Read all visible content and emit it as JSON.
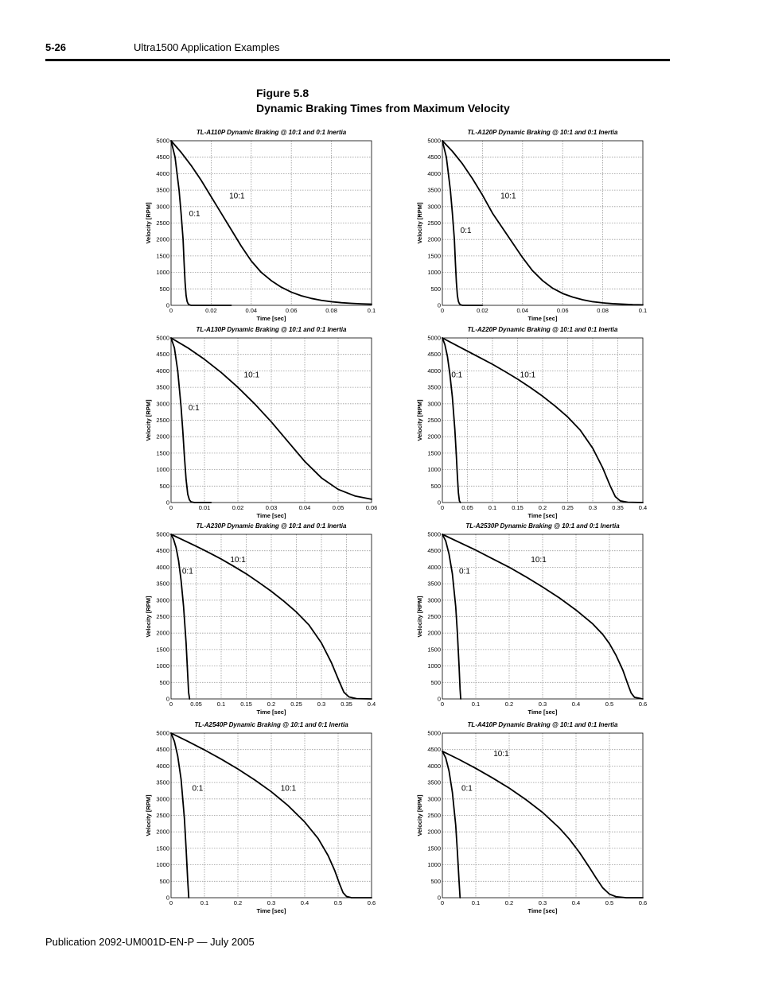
{
  "header": {
    "page_number": "5-26",
    "section": "Ultra1500 Application Examples"
  },
  "figure": {
    "number": "Figure 5.8",
    "title": "Dynamic Braking Times from Maximum Velocity"
  },
  "footer": {
    "publication": "Publication 2092-UM001D-EN-P — July 2005"
  },
  "colors": {
    "line": "#000000",
    "grid": "#9a9a9a",
    "frame": "#000000"
  },
  "chart_data": [
    {
      "type": "line",
      "title": "TL-A110P Dynamic Braking @ 10:1 and 0:1 Inertia",
      "xlabel": "Time [sec]",
      "ylabel": "Velocity [RPM]",
      "xlim": [
        0,
        0.1
      ],
      "ylim": [
        0,
        5000
      ],
      "grid": true,
      "xticks": [
        "0",
        "0.02",
        "0.04",
        "0.06",
        "0.08",
        "0.1"
      ],
      "yticks": [
        "0",
        "500",
        "1000",
        "1500",
        "2000",
        "2500",
        "3000",
        "3500",
        "4000",
        "4500",
        "5000"
      ],
      "series": [
        {
          "name": "0:1",
          "label_at": [
            0.009,
            2700
          ],
          "x": [
            0,
            0.002,
            0.004,
            0.005,
            0.006,
            0.0065,
            0.007,
            0.0075,
            0.008,
            0.0085,
            0.009,
            0.01,
            0.012,
            0.03
          ],
          "y": [
            5000,
            4500,
            3500,
            2800,
            2000,
            1300,
            700,
            300,
            120,
            50,
            20,
            0,
            0,
            0
          ]
        },
        {
          "name": "10:1",
          "label_at": [
            0.029,
            3250
          ],
          "x": [
            0,
            0.005,
            0.01,
            0.015,
            0.02,
            0.025,
            0.03,
            0.035,
            0.04,
            0.045,
            0.05,
            0.055,
            0.06,
            0.065,
            0.07,
            0.075,
            0.08,
            0.085,
            0.09,
            0.095,
            0.1
          ],
          "y": [
            5000,
            4650,
            4250,
            3800,
            3300,
            2800,
            2300,
            1800,
            1350,
            1000,
            750,
            550,
            400,
            290,
            210,
            150,
            110,
            80,
            60,
            45,
            35
          ]
        }
      ]
    },
    {
      "type": "line",
      "title": "TL-A120P Dynamic Braking @ 10:1 and 0:1 Inertia",
      "xlabel": "Time [sec]",
      "ylabel": "Velocity [RPM]",
      "xlim": [
        0,
        0.1
      ],
      "ylim": [
        0,
        5000
      ],
      "grid": true,
      "xticks": [
        "0",
        "0.02",
        "0.04",
        "0.06",
        "0.08",
        "0.1"
      ],
      "yticks": [
        "0",
        "500",
        "1000",
        "1500",
        "2000",
        "2500",
        "3000",
        "3500",
        "4000",
        "4500",
        "5000"
      ],
      "series": [
        {
          "name": "0:1",
          "label_at": [
            0.009,
            2200
          ],
          "x": [
            0,
            0.002,
            0.004,
            0.005,
            0.006,
            0.0065,
            0.007,
            0.0075,
            0.008,
            0.0085,
            0.009,
            0.01,
            0.012,
            0.02
          ],
          "y": [
            5000,
            4500,
            3500,
            2800,
            2000,
            1300,
            700,
            300,
            120,
            50,
            20,
            0,
            0,
            0
          ]
        },
        {
          "name": "10:1",
          "label_at": [
            0.029,
            3250
          ],
          "x": [
            0,
            0.005,
            0.01,
            0.015,
            0.02,
            0.025,
            0.03,
            0.035,
            0.04,
            0.045,
            0.05,
            0.055,
            0.06,
            0.065,
            0.07,
            0.075,
            0.08,
            0.085,
            0.09,
            0.095,
            0.1
          ],
          "y": [
            5000,
            4680,
            4300,
            3850,
            3350,
            2800,
            2350,
            1900,
            1450,
            1050,
            750,
            520,
            360,
            250,
            170,
            110,
            75,
            50,
            35,
            20,
            15
          ]
        }
      ]
    },
    {
      "type": "line",
      "title": "TL-A130P Dynamic Braking @ 10:1 and 0:1 Inertia",
      "xlabel": "Time [sec]",
      "ylabel": "Velocity [RPM]",
      "xlim": [
        0,
        0.06
      ],
      "ylim": [
        0,
        5000
      ],
      "grid": true,
      "xticks": [
        "0",
        "0.01",
        "0.02",
        "0.03",
        "0.04",
        "0.05",
        "0.06"
      ],
      "yticks": [
        "0",
        "500",
        "1000",
        "1500",
        "2000",
        "2500",
        "3000",
        "3500",
        "4000",
        "4500",
        "5000"
      ],
      "series": [
        {
          "name": "0:1",
          "label_at": [
            0.0052,
            2800
          ],
          "x": [
            0,
            0.001,
            0.002,
            0.003,
            0.0035,
            0.004,
            0.0045,
            0.005,
            0.0055,
            0.006,
            0.007,
            0.012
          ],
          "y": [
            5000,
            4700,
            4000,
            2900,
            2200,
            1400,
            700,
            250,
            80,
            20,
            0,
            0
          ]
        },
        {
          "name": "10:1",
          "label_at": [
            0.0218,
            3800
          ],
          "x": [
            0,
            0.005,
            0.01,
            0.015,
            0.02,
            0.025,
            0.03,
            0.035,
            0.04,
            0.045,
            0.05,
            0.055,
            0.06
          ],
          "y": [
            5000,
            4700,
            4350,
            3950,
            3500,
            3000,
            2450,
            1850,
            1250,
            750,
            400,
            200,
            100
          ]
        }
      ]
    },
    {
      "type": "line",
      "title": "TL-A220P Dynamic Braking @ 10:1 and 0:1 Inertia",
      "xlabel": "Time [sec]",
      "ylabel": "Velocity [RPM]",
      "xlim": [
        0,
        0.4
      ],
      "ylim": [
        0,
        5000
      ],
      "grid": true,
      "xticks": [
        "0",
        "0.05",
        "0.1",
        "0.15",
        "0.2",
        "0.25",
        "0.3",
        "0.35",
        "0.4"
      ],
      "yticks": [
        "0",
        "500",
        "1000",
        "1500",
        "2000",
        "2500",
        "3000",
        "3500",
        "4000",
        "4500",
        "5000"
      ],
      "series": [
        {
          "name": "0:1",
          "label_at": [
            0.018,
            3800
          ],
          "x": [
            0,
            0.005,
            0.01,
            0.015,
            0.02,
            0.025,
            0.028,
            0.03,
            0.032,
            0.034,
            0.036
          ],
          "y": [
            5000,
            4800,
            4450,
            3900,
            3200,
            2200,
            1400,
            800,
            300,
            50,
            0
          ]
        },
        {
          "name": "10:1",
          "label_at": [
            0.155,
            3800
          ],
          "x": [
            0,
            0.025,
            0.05,
            0.075,
            0.1,
            0.125,
            0.15,
            0.175,
            0.2,
            0.225,
            0.25,
            0.275,
            0.3,
            0.32,
            0.335,
            0.345,
            0.355,
            0.37,
            0.4
          ],
          "y": [
            5000,
            4800,
            4600,
            4400,
            4200,
            3980,
            3750,
            3500,
            3230,
            2930,
            2600,
            2200,
            1650,
            1050,
            500,
            180,
            50,
            10,
            0
          ]
        }
      ]
    },
    {
      "type": "line",
      "title": "TL-A230P Dynamic Braking @ 10:1 and 0:1 Inertia",
      "xlabel": "Time [sec]",
      "ylabel": "Velocity [RPM]",
      "xlim": [
        0,
        0.4
      ],
      "ylim": [
        0,
        5000
      ],
      "grid": true,
      "xticks": [
        "0",
        "0.05",
        "0.1",
        "0.15",
        "0.2",
        "0.25",
        "0.3",
        "0.35",
        "0.4"
      ],
      "yticks": [
        "0",
        "500",
        "1000",
        "1500",
        "2000",
        "2500",
        "3000",
        "3500",
        "4000",
        "4500",
        "5000"
      ],
      "series": [
        {
          "name": "0:1",
          "label_at": [
            0.022,
            3800
          ],
          "x": [
            0,
            0.005,
            0.01,
            0.015,
            0.02,
            0.025,
            0.03,
            0.033,
            0.035,
            0.037
          ],
          "y": [
            5000,
            4850,
            4600,
            4200,
            3600,
            2800,
            1700,
            800,
            200,
            0
          ]
        },
        {
          "name": "10:1",
          "label_at": [
            0.118,
            4150
          ],
          "x": [
            0,
            0.025,
            0.05,
            0.075,
            0.1,
            0.125,
            0.15,
            0.175,
            0.2,
            0.225,
            0.25,
            0.275,
            0.3,
            0.32,
            0.335,
            0.345,
            0.355,
            0.37,
            0.4
          ],
          "y": [
            5000,
            4820,
            4640,
            4450,
            4250,
            4030,
            3800,
            3540,
            3270,
            2970,
            2640,
            2250,
            1700,
            1100,
            550,
            200,
            60,
            10,
            0
          ]
        }
      ]
    },
    {
      "type": "line",
      "title": "TL-A2530P Dynamic Braking @ 10:1 and 0:1 Inertia",
      "xlabel": "Time [sec]",
      "ylabel": "Velocity [RPM]",
      "xlim": [
        0,
        0.6
      ],
      "ylim": [
        0,
        5000
      ],
      "grid": true,
      "xticks": [
        "0",
        "0.1",
        "0.2",
        "0.3",
        "0.4",
        "0.5",
        "0.6"
      ],
      "yticks": [
        "0",
        "500",
        "1000",
        "1500",
        "2000",
        "2500",
        "3000",
        "3500",
        "4000",
        "4500",
        "5000"
      ],
      "series": [
        {
          "name": "0:1",
          "label_at": [
            0.05,
            3800
          ],
          "x": [
            0,
            0.01,
            0.02,
            0.03,
            0.04,
            0.045,
            0.05,
            0.053,
            0.055
          ],
          "y": [
            5000,
            4800,
            4400,
            3800,
            2800,
            2000,
            1000,
            300,
            0
          ]
        },
        {
          "name": "10:1",
          "label_at": [
            0.265,
            4150
          ],
          "x": [
            0,
            0.05,
            0.1,
            0.15,
            0.2,
            0.25,
            0.3,
            0.35,
            0.4,
            0.45,
            0.48,
            0.5,
            0.52,
            0.54,
            0.555,
            0.565,
            0.575,
            0.6
          ],
          "y": [
            5000,
            4760,
            4520,
            4260,
            4000,
            3710,
            3400,
            3070,
            2700,
            2280,
            1960,
            1680,
            1320,
            880,
            450,
            180,
            50,
            0
          ]
        }
      ]
    },
    {
      "type": "line",
      "title": "TL-A2540P Dynamic Braking @ 10:1 and 0:1 Inertia",
      "xlabel": "Time [sec]",
      "ylabel": "Velocity [RPM]",
      "xlim": [
        0,
        0.6
      ],
      "ylim": [
        0,
        5000
      ],
      "grid": true,
      "xticks": [
        "0",
        "0.1",
        "0.2",
        "0.3",
        "0.4",
        "0.5",
        "0.6"
      ],
      "yticks": [
        "0",
        "500",
        "1000",
        "1500",
        "2000",
        "2500",
        "3000",
        "3500",
        "4000",
        "4500",
        "5000"
      ],
      "series": [
        {
          "name": "0:1",
          "label_at": [
            0.063,
            3250
          ],
          "x": [
            0,
            0.01,
            0.02,
            0.03,
            0.04,
            0.045,
            0.05,
            0.053
          ],
          "y": [
            5000,
            4750,
            4300,
            3600,
            2400,
            1500,
            500,
            0
          ]
        },
        {
          "name": "10:1",
          "label_at": [
            0.328,
            3250
          ],
          "x": [
            0,
            0.05,
            0.1,
            0.15,
            0.2,
            0.25,
            0.3,
            0.35,
            0.4,
            0.44,
            0.47,
            0.49,
            0.505,
            0.515,
            0.525,
            0.54,
            0.6
          ],
          "y": [
            5000,
            4750,
            4490,
            4210,
            3910,
            3580,
            3220,
            2800,
            2300,
            1800,
            1280,
            820,
            400,
            150,
            40,
            0,
            0
          ]
        }
      ]
    },
    {
      "type": "line",
      "title": "TL-A410P Dynamic Braking @ 10:1 and 0:1 Inertia",
      "xlabel": "Time [sec]",
      "ylabel": "Velocity [RPM]",
      "xlim": [
        0,
        0.6
      ],
      "ylim": [
        0,
        5000
      ],
      "grid": true,
      "xticks": [
        "0",
        "0.1",
        "0.2",
        "0.3",
        "0.4",
        "0.5",
        "0.6"
      ],
      "yticks": [
        "0",
        "500",
        "1000",
        "1500",
        "2000",
        "2500",
        "3000",
        "3500",
        "4000",
        "4500",
        "5000"
      ],
      "series": [
        {
          "name": "0:1",
          "label_at": [
            0.057,
            3250
          ],
          "x": [
            0,
            0.01,
            0.02,
            0.03,
            0.04,
            0.045,
            0.05,
            0.053
          ],
          "y": [
            4450,
            4250,
            3850,
            3200,
            2200,
            1400,
            500,
            0
          ]
        },
        {
          "name": "10:1",
          "label_at": [
            0.153,
            4300
          ],
          "x": [
            0,
            0.05,
            0.1,
            0.15,
            0.2,
            0.25,
            0.3,
            0.35,
            0.38,
            0.41,
            0.44,
            0.46,
            0.48,
            0.5,
            0.52,
            0.55,
            0.6
          ],
          "y": [
            4450,
            4200,
            3930,
            3640,
            3330,
            2980,
            2590,
            2120,
            1780,
            1380,
            920,
            600,
            300,
            110,
            30,
            0,
            0
          ]
        }
      ]
    }
  ]
}
